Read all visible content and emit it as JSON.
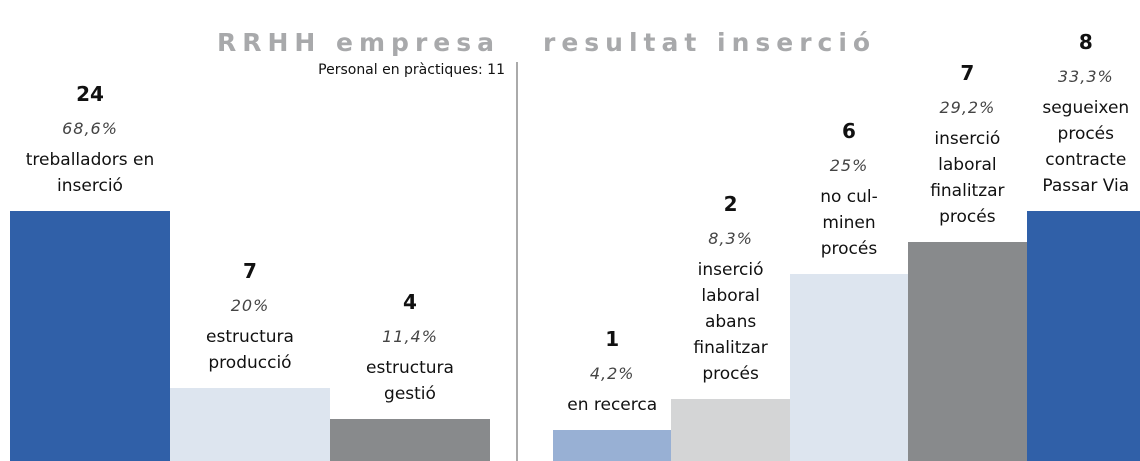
{
  "chart_data": [
    {
      "type": "bar",
      "title": "RRHH empresa",
      "subtitle": "Personal en pràctiques: 11",
      "categories": [
        "treballadors en\ninserció",
        "estructura\nproducció",
        "estructura\ngestió"
      ],
      "values": [
        24,
        7,
        4
      ],
      "shares": [
        68.6,
        20,
        11.4
      ],
      "share_labels": [
        "68,6%",
        "20%",
        "11,4%"
      ],
      "colors": [
        "#3060a8",
        "#dde5ef",
        "#888a8c"
      ]
    },
    {
      "type": "bar",
      "title": "resultat inserció",
      "categories": [
        "en recerca",
        "inserció\nlaboral\nabans\nfinalitzar\nprocés",
        "no cul-\nminen\nprocés",
        "inserció\nlaboral\nfinalitzar\nprocés",
        "segueixen\nprocés\ncontracte\nPassar Via"
      ],
      "values": [
        1,
        2,
        6,
        7,
        8
      ],
      "shares": [
        4.2,
        8.3,
        25,
        29.2,
        33.3
      ],
      "share_labels": [
        "4,2%",
        "8,3%",
        "25%",
        "29,2%",
        "33,3%"
      ],
      "colors": [
        "#98b0d4",
        "#d4d5d6",
        "#dde5ef",
        "#888a8c",
        "#3060a8"
      ]
    }
  ]
}
